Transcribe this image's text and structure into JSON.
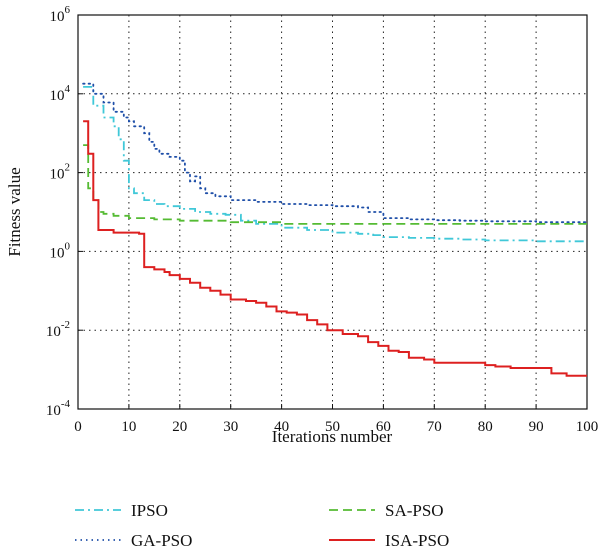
{
  "chart_data": {
    "type": "line",
    "xlabel": "Iterations number",
    "ylabel": "Fitness value",
    "xlim": [
      0,
      100
    ],
    "ylim": [
      0.0001,
      1000000
    ],
    "y_scale": "log",
    "grid": true,
    "legend_position": "bottom",
    "x_ticks": [
      "0",
      "10",
      "20",
      "30",
      "40",
      "50",
      "60",
      "70",
      "80",
      "90",
      "100"
    ],
    "y_ticks": [
      {
        "base": "10",
        "exp": "-4"
      },
      {
        "base": "10",
        "exp": "-2"
      },
      {
        "base": "10",
        "exp": "0"
      },
      {
        "base": "10",
        "exp": "2"
      },
      {
        "base": "10",
        "exp": "4"
      },
      {
        "base": "10",
        "exp": "6"
      }
    ],
    "series": [
      {
        "name": "IPSO",
        "color": "#40c8d8",
        "style": "dash-dot",
        "x": [
          1,
          3,
          5,
          7,
          8,
          9,
          10,
          11,
          13,
          15,
          17,
          20,
          23,
          26,
          29,
          32,
          35,
          40,
          45,
          50,
          55,
          58,
          60,
          65,
          70,
          75,
          80,
          85,
          90,
          95,
          100
        ],
        "y": [
          15000,
          5000,
          2500,
          1500,
          700,
          200,
          40,
          30,
          20,
          16,
          14,
          12,
          10,
          9,
          8.5,
          6,
          5,
          4,
          3.5,
          3,
          2.8,
          2.6,
          2.3,
          2.2,
          2.1,
          2.0,
          1.9,
          1.9,
          1.8,
          1.8,
          1.8
        ]
      },
      {
        "name": "GA-PSO",
        "color": "#1f4fa8",
        "style": "dotted",
        "x": [
          1,
          3,
          5,
          7,
          9,
          10,
          11,
          13,
          14,
          15,
          16,
          18,
          20,
          21,
          22,
          23,
          24,
          25,
          27,
          30,
          35,
          40,
          45,
          50,
          55,
          57,
          60,
          65,
          70,
          75,
          80,
          90,
          100
        ],
        "y": [
          18000,
          10000,
          6000,
          3500,
          2500,
          2000,
          1500,
          1000,
          600,
          400,
          300,
          250,
          200,
          100,
          60,
          80,
          40,
          30,
          25,
          20,
          18,
          16,
          15,
          14,
          13,
          10,
          7,
          6.5,
          6.2,
          6,
          5.8,
          5.5,
          5.5
        ]
      },
      {
        "name": "SA-PSO",
        "color": "#55bb33",
        "style": "dashed",
        "x": [
          1,
          2,
          3,
          4,
          5,
          7,
          10,
          15,
          20,
          30,
          40,
          50,
          60,
          70,
          80,
          90,
          100
        ],
        "y": [
          500,
          40,
          20,
          10,
          9,
          8,
          7,
          6.5,
          6,
          5.5,
          5,
          5,
          5,
          5,
          5,
          5,
          5
        ]
      },
      {
        "name": "ISA-PSO",
        "color": "#dd2020",
        "style": "solid",
        "x": [
          1,
          2,
          3,
          4,
          5,
          7,
          10,
          12,
          13,
          15,
          17,
          18,
          20,
          22,
          24,
          26,
          28,
          30,
          33,
          35,
          37,
          39,
          41,
          43,
          45,
          47,
          49,
          52,
          55,
          57,
          59,
          61,
          63,
          65,
          68,
          70,
          74,
          77,
          80,
          82,
          85,
          88,
          92,
          93,
          94,
          96,
          100
        ],
        "y": [
          2000,
          300,
          20,
          3.5,
          3.5,
          3,
          3,
          2.8,
          0.4,
          0.35,
          0.3,
          0.25,
          0.2,
          0.16,
          0.12,
          0.1,
          0.08,
          0.06,
          0.055,
          0.05,
          0.04,
          0.03,
          0.028,
          0.025,
          0.018,
          0.014,
          0.01,
          0.008,
          0.007,
          0.005,
          0.004,
          0.003,
          0.0028,
          0.002,
          0.0018,
          0.0015,
          0.0015,
          0.0015,
          0.0013,
          0.0012,
          0.0011,
          0.0011,
          0.0011,
          0.0008,
          0.0008,
          0.0007,
          0.0007
        ]
      }
    ]
  }
}
